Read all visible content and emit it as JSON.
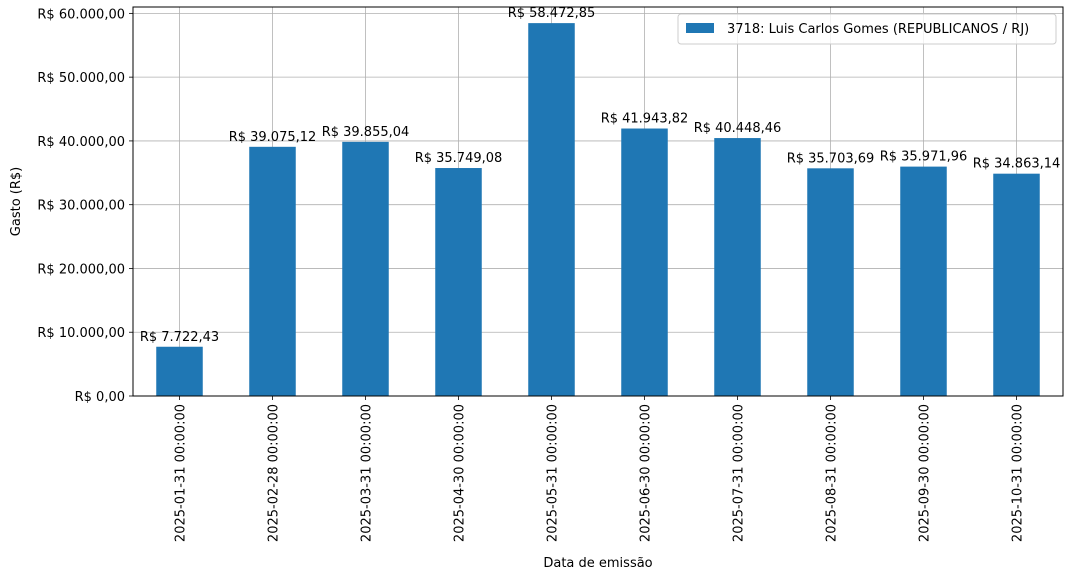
{
  "chart_data": {
    "type": "bar",
    "xlabel": "Data de emissão",
    "ylabel": "Gasto (R$)",
    "categories": [
      "2025-01-31 00:00:00",
      "2025-02-28 00:00:00",
      "2025-03-31 00:00:00",
      "2025-04-30 00:00:00",
      "2025-05-31 00:00:00",
      "2025-06-30 00:00:00",
      "2025-07-31 00:00:00",
      "2025-08-31 00:00:00",
      "2025-09-30 00:00:00",
      "2025-10-31 00:00:00"
    ],
    "series": [
      {
        "name": "3718: Luis Carlos Gomes (REPUBLICANOS / RJ)",
        "color": "#1f77b4",
        "values": [
          7722.43,
          39075.12,
          39855.04,
          35749.08,
          58472.85,
          41943.82,
          40448.46,
          35703.69,
          35971.96,
          34863.14
        ],
        "value_labels": [
          "R$ 7.722,43",
          "R$ 39.075,12",
          "R$ 39.855,04",
          "R$ 35.749,08",
          "R$ 58.472,85",
          "R$ 41.943,82",
          "R$ 40.448,46",
          "R$ 35.703,69",
          "R$ 35.971,96",
          "R$ 34.863,14"
        ]
      }
    ],
    "yticks": [
      0,
      10000,
      20000,
      30000,
      40000,
      50000,
      60000
    ],
    "ytick_labels": [
      "R$ 0,00",
      "R$ 10.000,00",
      "R$ 20.000,00",
      "R$ 30.000,00",
      "R$ 40.000,00",
      "R$ 50.000,00",
      "R$ 60.000,00"
    ],
    "ylim": [
      0,
      61000
    ],
    "grid": true,
    "legend_position": "top-right"
  }
}
